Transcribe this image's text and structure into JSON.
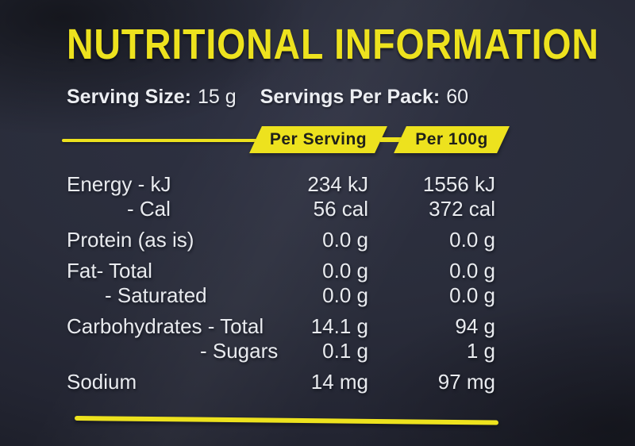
{
  "label": {
    "title": "NUTRITIONAL INFORMATION",
    "serving": {
      "size_label": "Serving Size:",
      "size_value": "15 g",
      "pack_label": "Servings Per Pack:",
      "pack_value": "60"
    },
    "columns": [
      "Per Serving",
      "Per 100g"
    ],
    "table": {
      "rows": [
        {
          "name": "Energy - kJ",
          "per_serving": "234 kJ",
          "per_100g": "1556 kJ"
        },
        {
          "name": "- Cal",
          "per_serving": "56 cal",
          "per_100g": "372 cal"
        },
        {
          "name": "Protein (as is)",
          "per_serving": "0.0 g",
          "per_100g": "0.0 g"
        },
        {
          "name": "Fat- Total",
          "per_serving": "0.0 g",
          "per_100g": "0.0 g"
        },
        {
          "name": "- Saturated",
          "per_serving": "0.0 g",
          "per_100g": "0.0 g"
        },
        {
          "name": "Carbohydrates - Total",
          "per_serving": "14.1 g",
          "per_100g": "94 g"
        },
        {
          "name": "- Sugars",
          "per_serving": "0.1 g",
          "per_100g": "1 g"
        },
        {
          "name": "Sodium",
          "per_serving": "14 mg",
          "per_100g": "97 mg"
        }
      ]
    },
    "colors": {
      "accent_yellow": "#EDE21E",
      "text_white": "#ECEEF2",
      "header_text": "#20211A",
      "background_dark": "#232532"
    }
  }
}
